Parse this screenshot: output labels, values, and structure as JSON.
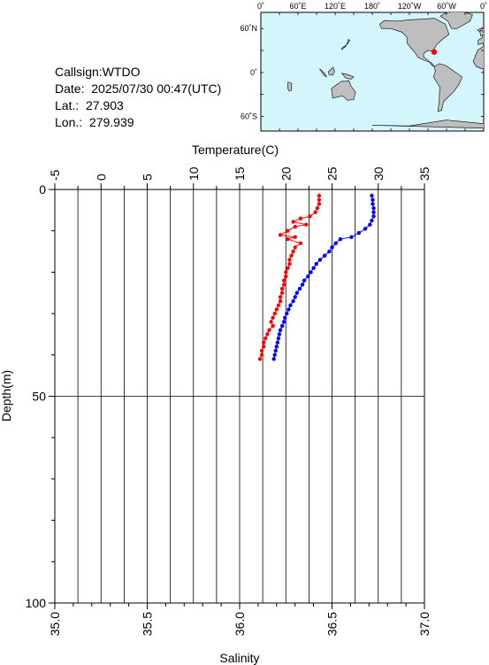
{
  "station": {
    "callsign": "Callsign:WTDO",
    "date": "Date:  2025/07/30 00:47(UTC)",
    "lat": "Lat.:  27.903",
    "lon": "Lon.:  279.939"
  },
  "map": {
    "top_labels": [
      "0˚",
      "60˚E",
      "120˚E",
      "180˚",
      "120˚W",
      "60˚W",
      "0˚"
    ],
    "left_labels": [
      "60˚N",
      "0˚",
      "60˚S"
    ],
    "station_marker": {
      "lat": 27.903,
      "lon": 279.939
    },
    "ocean_color": "#d5f5fd",
    "land_color": "#bebebe",
    "marker_color": "#ff0000"
  },
  "chart_data": {
    "type": "line",
    "x_top_label": "Temperature(C)",
    "x_bottom_label": "Salinity",
    "y_label": "Depth(m)",
    "temperature_ticks": [
      "-5",
      "0",
      "5",
      "10",
      "15",
      "20",
      "25",
      "30",
      "35"
    ],
    "salinity_ticks": [
      "35.0",
      "35.5",
      "36.0",
      "36.5",
      "37.0"
    ],
    "depth_ticks": [
      "0",
      "50",
      "100"
    ],
    "temperature_range": [
      -5,
      35
    ],
    "salinity_range": [
      35.0,
      37.0
    ],
    "depth_range": [
      0,
      100
    ],
    "series": [
      {
        "color": "#0000ff",
        "axis": "temperature",
        "points": [
          [
            29.3,
            1.5
          ],
          [
            29.4,
            2.5
          ],
          [
            29.4,
            3.5
          ],
          [
            29.5,
            4.5
          ],
          [
            29.5,
            5.5
          ],
          [
            29.5,
            6.5
          ],
          [
            29.3,
            7.5
          ],
          [
            29.1,
            8.5
          ],
          [
            28.6,
            9.5
          ],
          [
            27.9,
            10.5
          ],
          [
            27.1,
            11.5
          ],
          [
            25.9,
            12.0
          ],
          [
            25.4,
            13.0
          ],
          [
            25.0,
            14.0
          ],
          [
            24.7,
            15.0
          ],
          [
            24.2,
            16.0
          ],
          [
            23.7,
            17.0
          ],
          [
            23.3,
            18.0
          ],
          [
            23.0,
            19.0
          ],
          [
            22.7,
            20.0
          ],
          [
            22.4,
            21.0
          ],
          [
            22.0,
            22.0
          ],
          [
            21.8,
            23.0
          ],
          [
            21.5,
            24.0
          ],
          [
            21.2,
            25.0
          ],
          [
            21.0,
            26.0
          ],
          [
            20.8,
            27.0
          ],
          [
            20.5,
            28.0
          ],
          [
            20.3,
            29.0
          ],
          [
            20.1,
            30.0
          ],
          [
            19.9,
            31.0
          ],
          [
            19.8,
            32.0
          ],
          [
            19.6,
            33.0
          ],
          [
            19.4,
            34.0
          ],
          [
            19.3,
            35.0
          ],
          [
            19.2,
            36.0
          ],
          [
            19.1,
            37.0
          ],
          [
            19.0,
            38.0
          ],
          [
            18.9,
            39.0
          ],
          [
            18.8,
            40.0
          ],
          [
            18.7,
            41.0
          ]
        ]
      },
      {
        "color": "#ff0000",
        "axis": "salinity",
        "points": [
          [
            36.43,
            1.5
          ],
          [
            36.43,
            2.5
          ],
          [
            36.43,
            3.5
          ],
          [
            36.42,
            4.5
          ],
          [
            36.41,
            5.5
          ],
          [
            36.38,
            6.5
          ],
          [
            36.33,
            7.0
          ],
          [
            36.29,
            7.8
          ],
          [
            36.36,
            8.5
          ],
          [
            36.3,
            9.0
          ],
          [
            36.26,
            10.0
          ],
          [
            36.22,
            11.0
          ],
          [
            36.3,
            11.5
          ],
          [
            36.26,
            12.0
          ],
          [
            36.33,
            13.0
          ],
          [
            36.3,
            14.0
          ],
          [
            36.29,
            15.0
          ],
          [
            36.28,
            16.0
          ],
          [
            36.27,
            17.0
          ],
          [
            36.27,
            18.0
          ],
          [
            36.26,
            19.0
          ],
          [
            36.25,
            20.0
          ],
          [
            36.25,
            21.0
          ],
          [
            36.24,
            22.0
          ],
          [
            36.24,
            23.0
          ],
          [
            36.23,
            24.0
          ],
          [
            36.23,
            25.0
          ],
          [
            36.22,
            26.0
          ],
          [
            36.22,
            27.0
          ],
          [
            36.21,
            28.0
          ],
          [
            36.2,
            29.0
          ],
          [
            36.19,
            30.0
          ],
          [
            36.18,
            31.0
          ],
          [
            36.17,
            32.0
          ],
          [
            36.18,
            33.0
          ],
          [
            36.16,
            34.0
          ],
          [
            36.15,
            35.0
          ],
          [
            36.14,
            36.0
          ],
          [
            36.13,
            37.0
          ],
          [
            36.13,
            38.0
          ],
          [
            36.12,
            39.0
          ],
          [
            36.12,
            40.0
          ],
          [
            36.11,
            41.0
          ]
        ]
      }
    ]
  }
}
